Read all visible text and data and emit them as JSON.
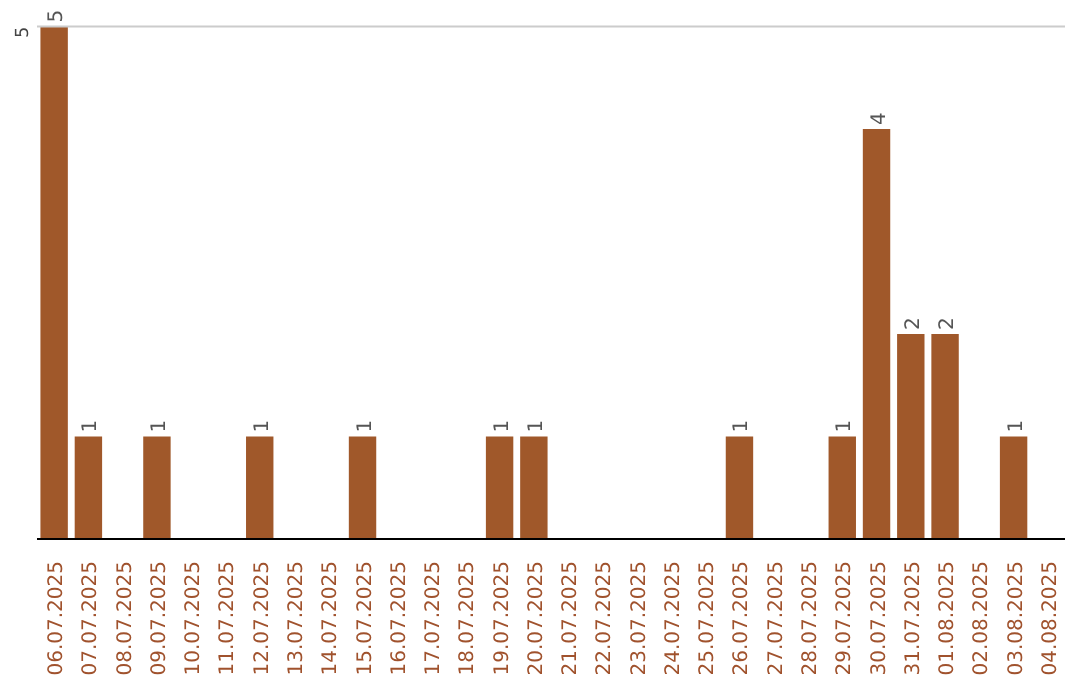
{
  "chart_data": {
    "type": "bar",
    "categories": [
      "06.07.2025",
      "07.07.2025",
      "08.07.2025",
      "09.07.2025",
      "10.07.2025",
      "11.07.2025",
      "12.07.2025",
      "13.07.2025",
      "14.07.2025",
      "15.07.2025",
      "16.07.2025",
      "17.07.2025",
      "18.07.2025",
      "19.07.2025",
      "20.07.2025",
      "21.07.2025",
      "22.07.2025",
      "23.07.2025",
      "24.07.2025",
      "25.07.2025",
      "26.07.2025",
      "27.07.2025",
      "28.07.2025",
      "29.07.2025",
      "30.07.2025",
      "31.07.2025",
      "01.08.2025",
      "02.08.2025",
      "03.08.2025",
      "04.08.2025"
    ],
    "values": [
      5,
      1,
      0,
      1,
      0,
      0,
      1,
      0,
      0,
      1,
      0,
      0,
      0,
      1,
      1,
      0,
      0,
      0,
      0,
      0,
      1,
      0,
      0,
      1,
      4,
      2,
      2,
      0,
      1,
      0
    ],
    "value_labels": [
      "5",
      "1",
      null,
      "1",
      null,
      null,
      "1",
      null,
      null,
      "1",
      null,
      null,
      null,
      "1",
      "1",
      null,
      null,
      null,
      null,
      null,
      "1",
      null,
      null,
      "1",
      "4",
      "2",
      "2",
      null,
      "1",
      null
    ],
    "color": "#a0582a",
    "ylim": [
      0,
      5
    ],
    "yticks": [
      5
    ],
    "ref_lines": [
      {
        "axis": "y",
        "value": 5,
        "color": "#cccccc"
      }
    ]
  }
}
